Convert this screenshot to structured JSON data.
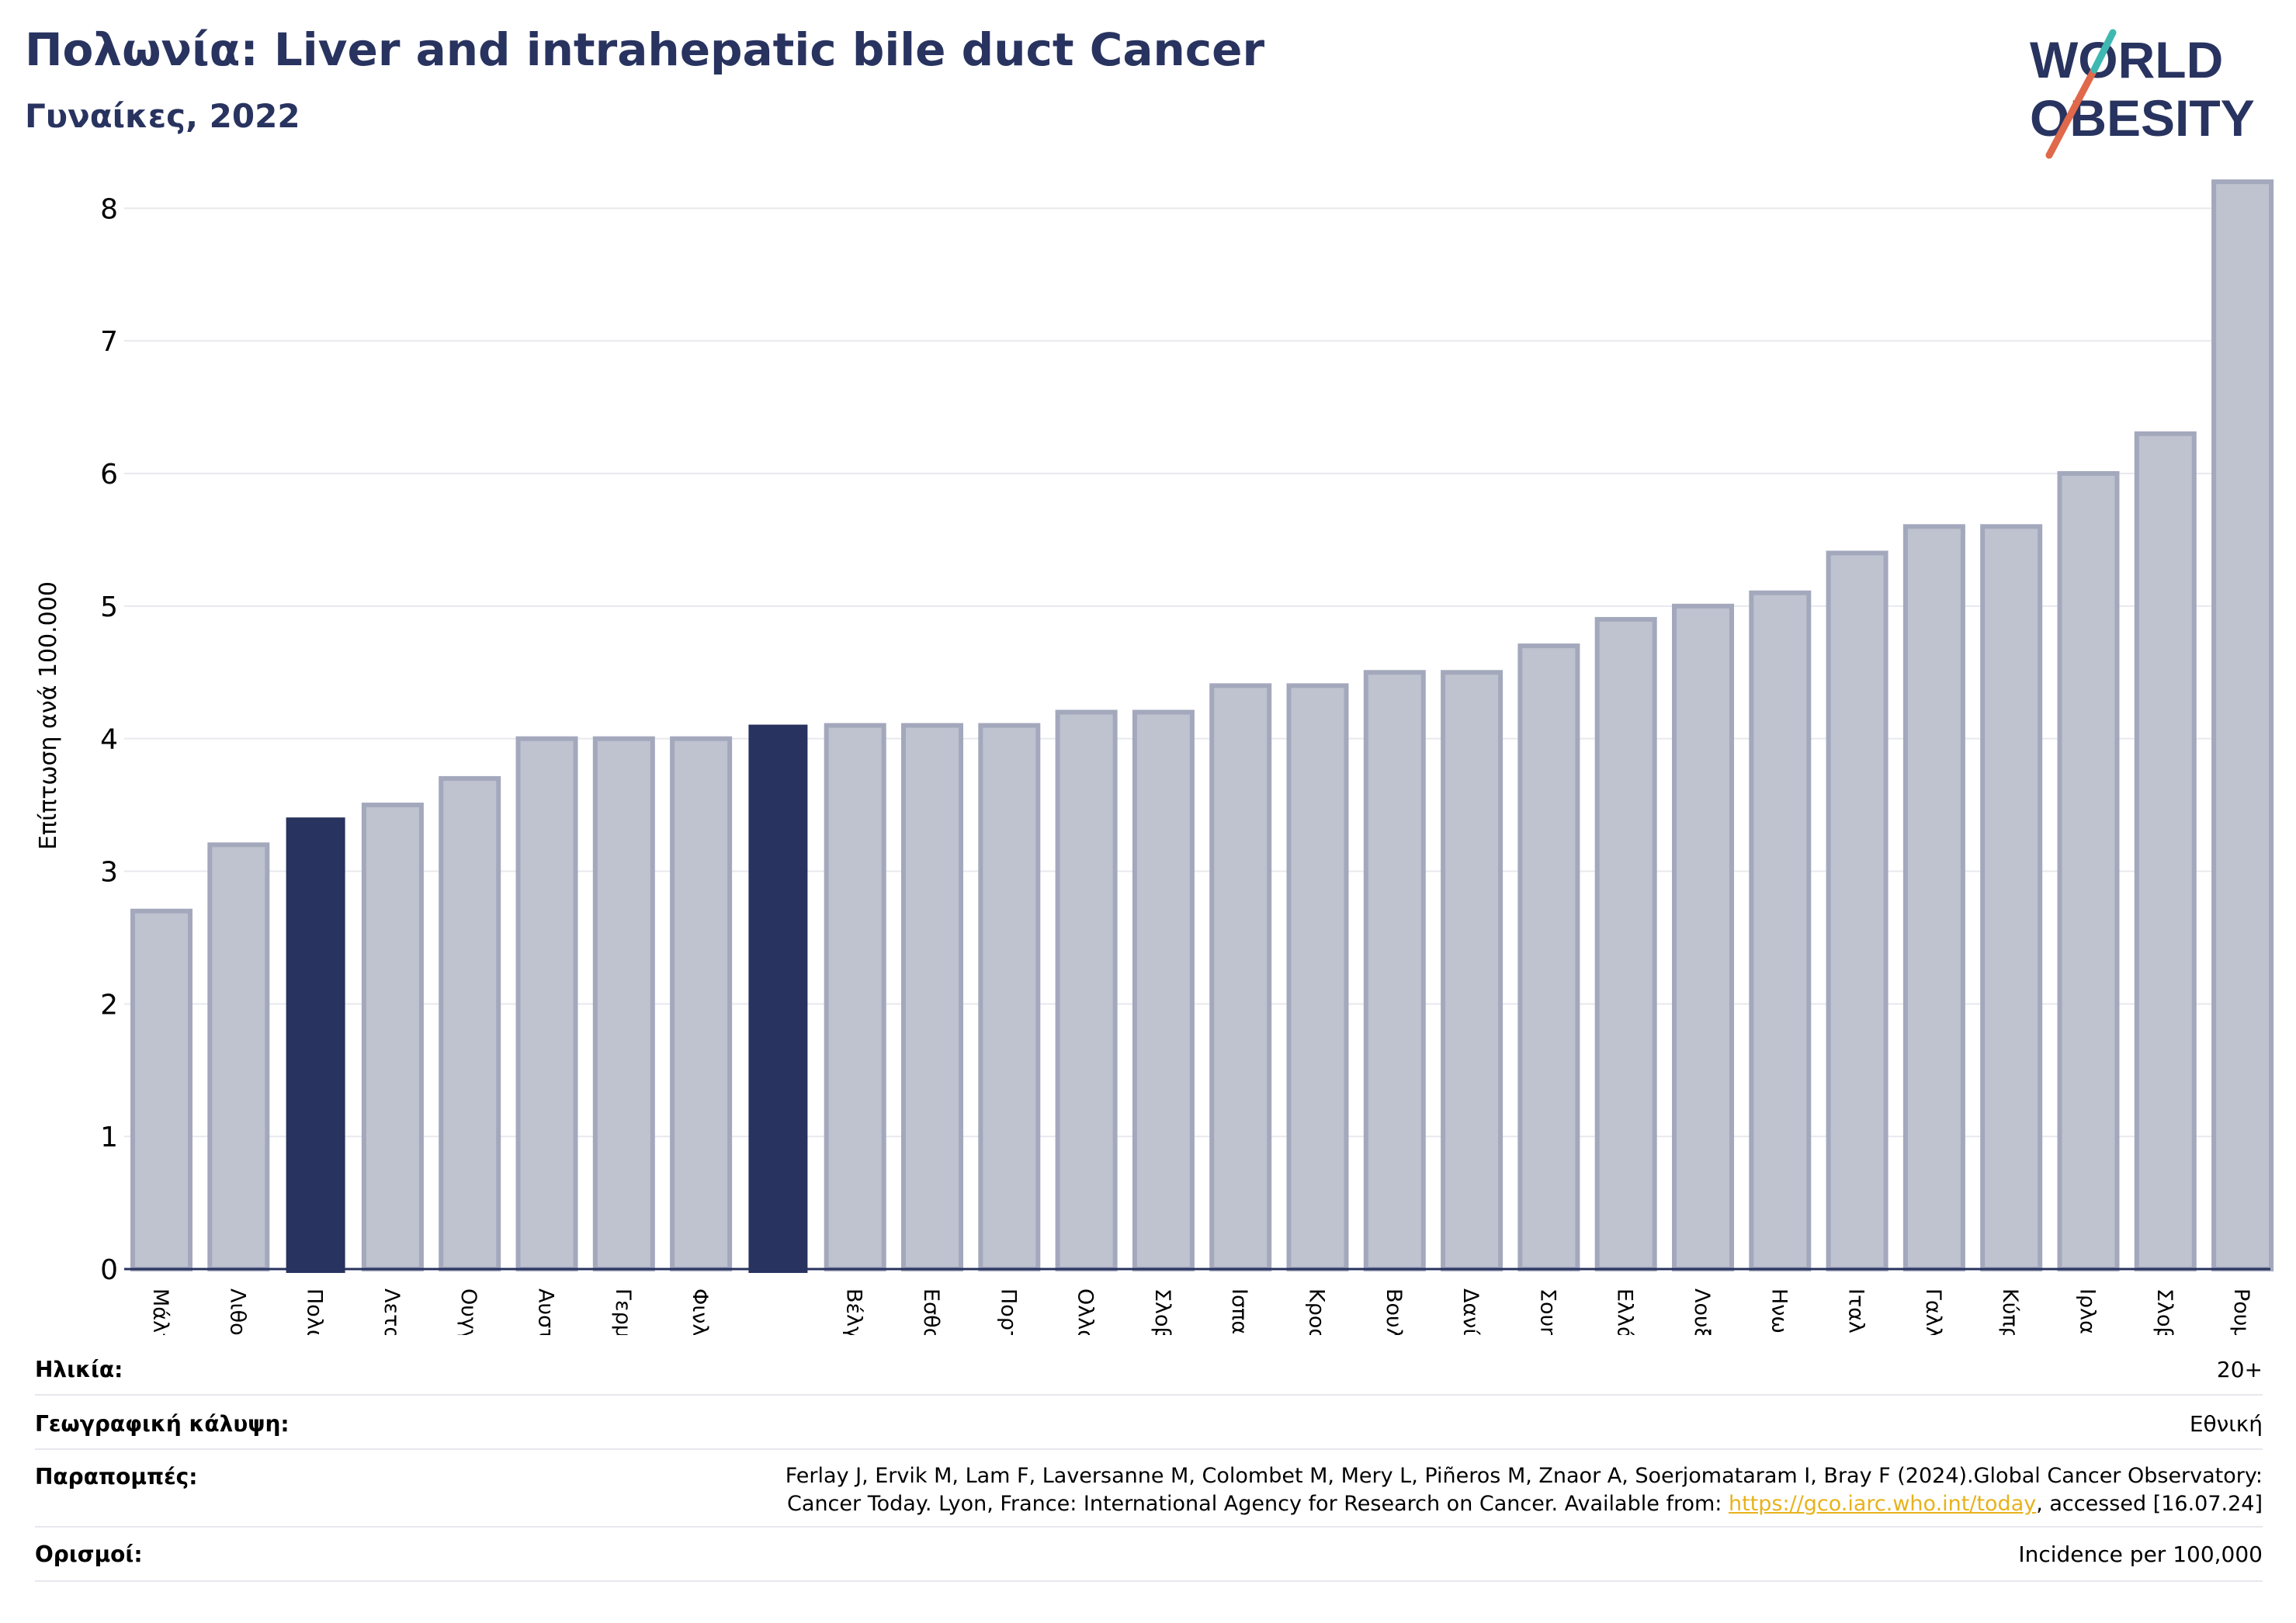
{
  "header": {
    "title": "Πολωνία: Liver and intrahepatic bile duct Cancer",
    "subtitle": "Γυναίκες, 2022"
  },
  "logo": {
    "line1": "WORLD",
    "line2": "OBESITY",
    "colors": [
      "#28335f",
      "#e0684b",
      "#3fb8b2"
    ]
  },
  "chart_data": {
    "type": "bar",
    "ylabel": "Επίπτωση ανά 100.000",
    "ylim": [
      0,
      8.4
    ],
    "yticks": [
      0,
      1,
      2,
      3,
      4,
      5,
      6,
      7,
      8
    ],
    "grid": true,
    "categories": [
      "Μάλτα",
      "Λιθουανία",
      "Πολωνία",
      "Λετονία",
      "Ουγγαρία",
      "Αυστρία",
      "Γερμανία",
      "Φινλανδία",
      "",
      "Βέλγιο",
      "Εσθονία",
      "Πορτογαλία",
      "Ολλανδία",
      "Σλοβακία",
      "Ισπανία",
      "Κροατία",
      "Βουλγαρία",
      "Δανία",
      "Σουηδία",
      "Ελλάδα",
      "Λουξεμβούργο",
      "Ηνωμένο Βασίλειο",
      "Ιταλία",
      "Γαλλία",
      "Κύπρος",
      "Ιρλανδία",
      "Σλοβενία",
      "Ρουμανία"
    ],
    "values": [
      2.7,
      3.2,
      3.4,
      3.5,
      3.7,
      4.0,
      4.0,
      4.0,
      4.1,
      4.1,
      4.1,
      4.1,
      4.2,
      4.2,
      4.4,
      4.4,
      4.5,
      4.5,
      4.7,
      4.9,
      5.0,
      5.1,
      5.4,
      5.6,
      5.6,
      6.0,
      6.3,
      8.2
    ],
    "highlight": [
      2,
      8
    ],
    "colors": {
      "bar": "#bfc2cf",
      "bar_edge": "#a3a8bc",
      "highlight": "#28335f"
    }
  },
  "meta": {
    "age_label": "Ηλικία:",
    "age_value": "20+",
    "coverage_label": "Γεωγραφική κάλυψη:",
    "coverage_value": "Εθνική",
    "refs_label": "Παραπομπές:",
    "refs_line1": "Ferlay J, Ervik M, Lam F, Laversanne M, Colombet M, Mery L, Piñeros M, Znaor A, Soerjomataram I, Bray F (2024).Global Cancer Observatory:",
    "refs_line2_pre": "Cancer Today. Lyon, France: International Agency for Research on Cancer. Available from: ",
    "refs_link": "https://gco.iarc.who.int/today",
    "refs_line2_post": ", accessed [16.07.24]",
    "defs_label": "Ορισμοί:",
    "defs_value": "Incidence per 100,000"
  }
}
